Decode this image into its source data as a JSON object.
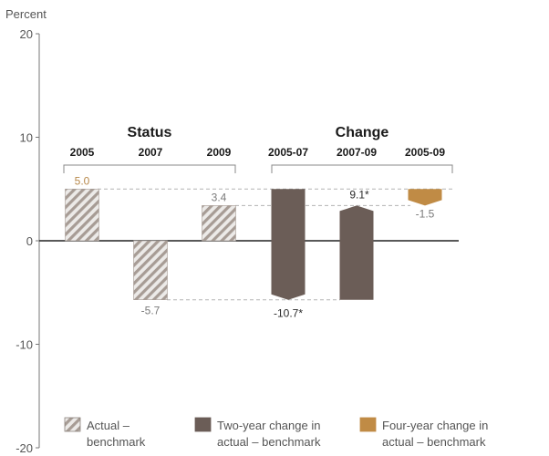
{
  "chart_data": {
    "type": "bar",
    "ylabel": "Percent",
    "ylim": [
      -20,
      20
    ],
    "yticks": [
      20,
      10,
      0,
      -10,
      -20
    ],
    "grid": false,
    "legend_position": "bottom",
    "groups": [
      {
        "title": "Status",
        "columns": [
          "2005",
          "2007",
          "2009"
        ]
      },
      {
        "title": "Change",
        "columns": [
          "2005-07",
          "2007-09",
          "2005-09"
        ]
      }
    ],
    "categories": [
      "2005",
      "2007",
      "2009",
      "2005-07",
      "2007-09",
      "2005-09"
    ],
    "bars": [
      {
        "category": "2005",
        "series": "actual",
        "from": 0,
        "to": 5.0,
        "label": "5.0"
      },
      {
        "category": "2007",
        "series": "actual",
        "from": 0,
        "to": -5.7,
        "label": "-5.7"
      },
      {
        "category": "2009",
        "series": "actual",
        "from": 0,
        "to": 3.4,
        "label": "3.4"
      },
      {
        "category": "2005-07",
        "series": "two_year",
        "from": 5.0,
        "to": -5.7,
        "label": "-10.7*"
      },
      {
        "category": "2007-09",
        "series": "two_year",
        "from": -5.7,
        "to": 3.4,
        "label": "9.1*"
      },
      {
        "category": "2005-09",
        "series": "four_year",
        "from": 5.0,
        "to": 3.4,
        "label": "-1.5"
      }
    ],
    "series": [
      {
        "key": "actual",
        "name_lines": [
          "Actual –",
          "benchmark"
        ],
        "color": "#a79c95",
        "pattern": "diagonal-hatch"
      },
      {
        "key": "two_year",
        "name_lines": [
          "Two-year change in",
          "actual – benchmark"
        ],
        "color": "#6b5d57"
      },
      {
        "key": "four_year",
        "name_lines": [
          "Four-year change in",
          "actual – benchmark"
        ],
        "color": "#c08b45"
      }
    ],
    "reference_lines": [
      5.0,
      3.4,
      -5.7
    ]
  }
}
